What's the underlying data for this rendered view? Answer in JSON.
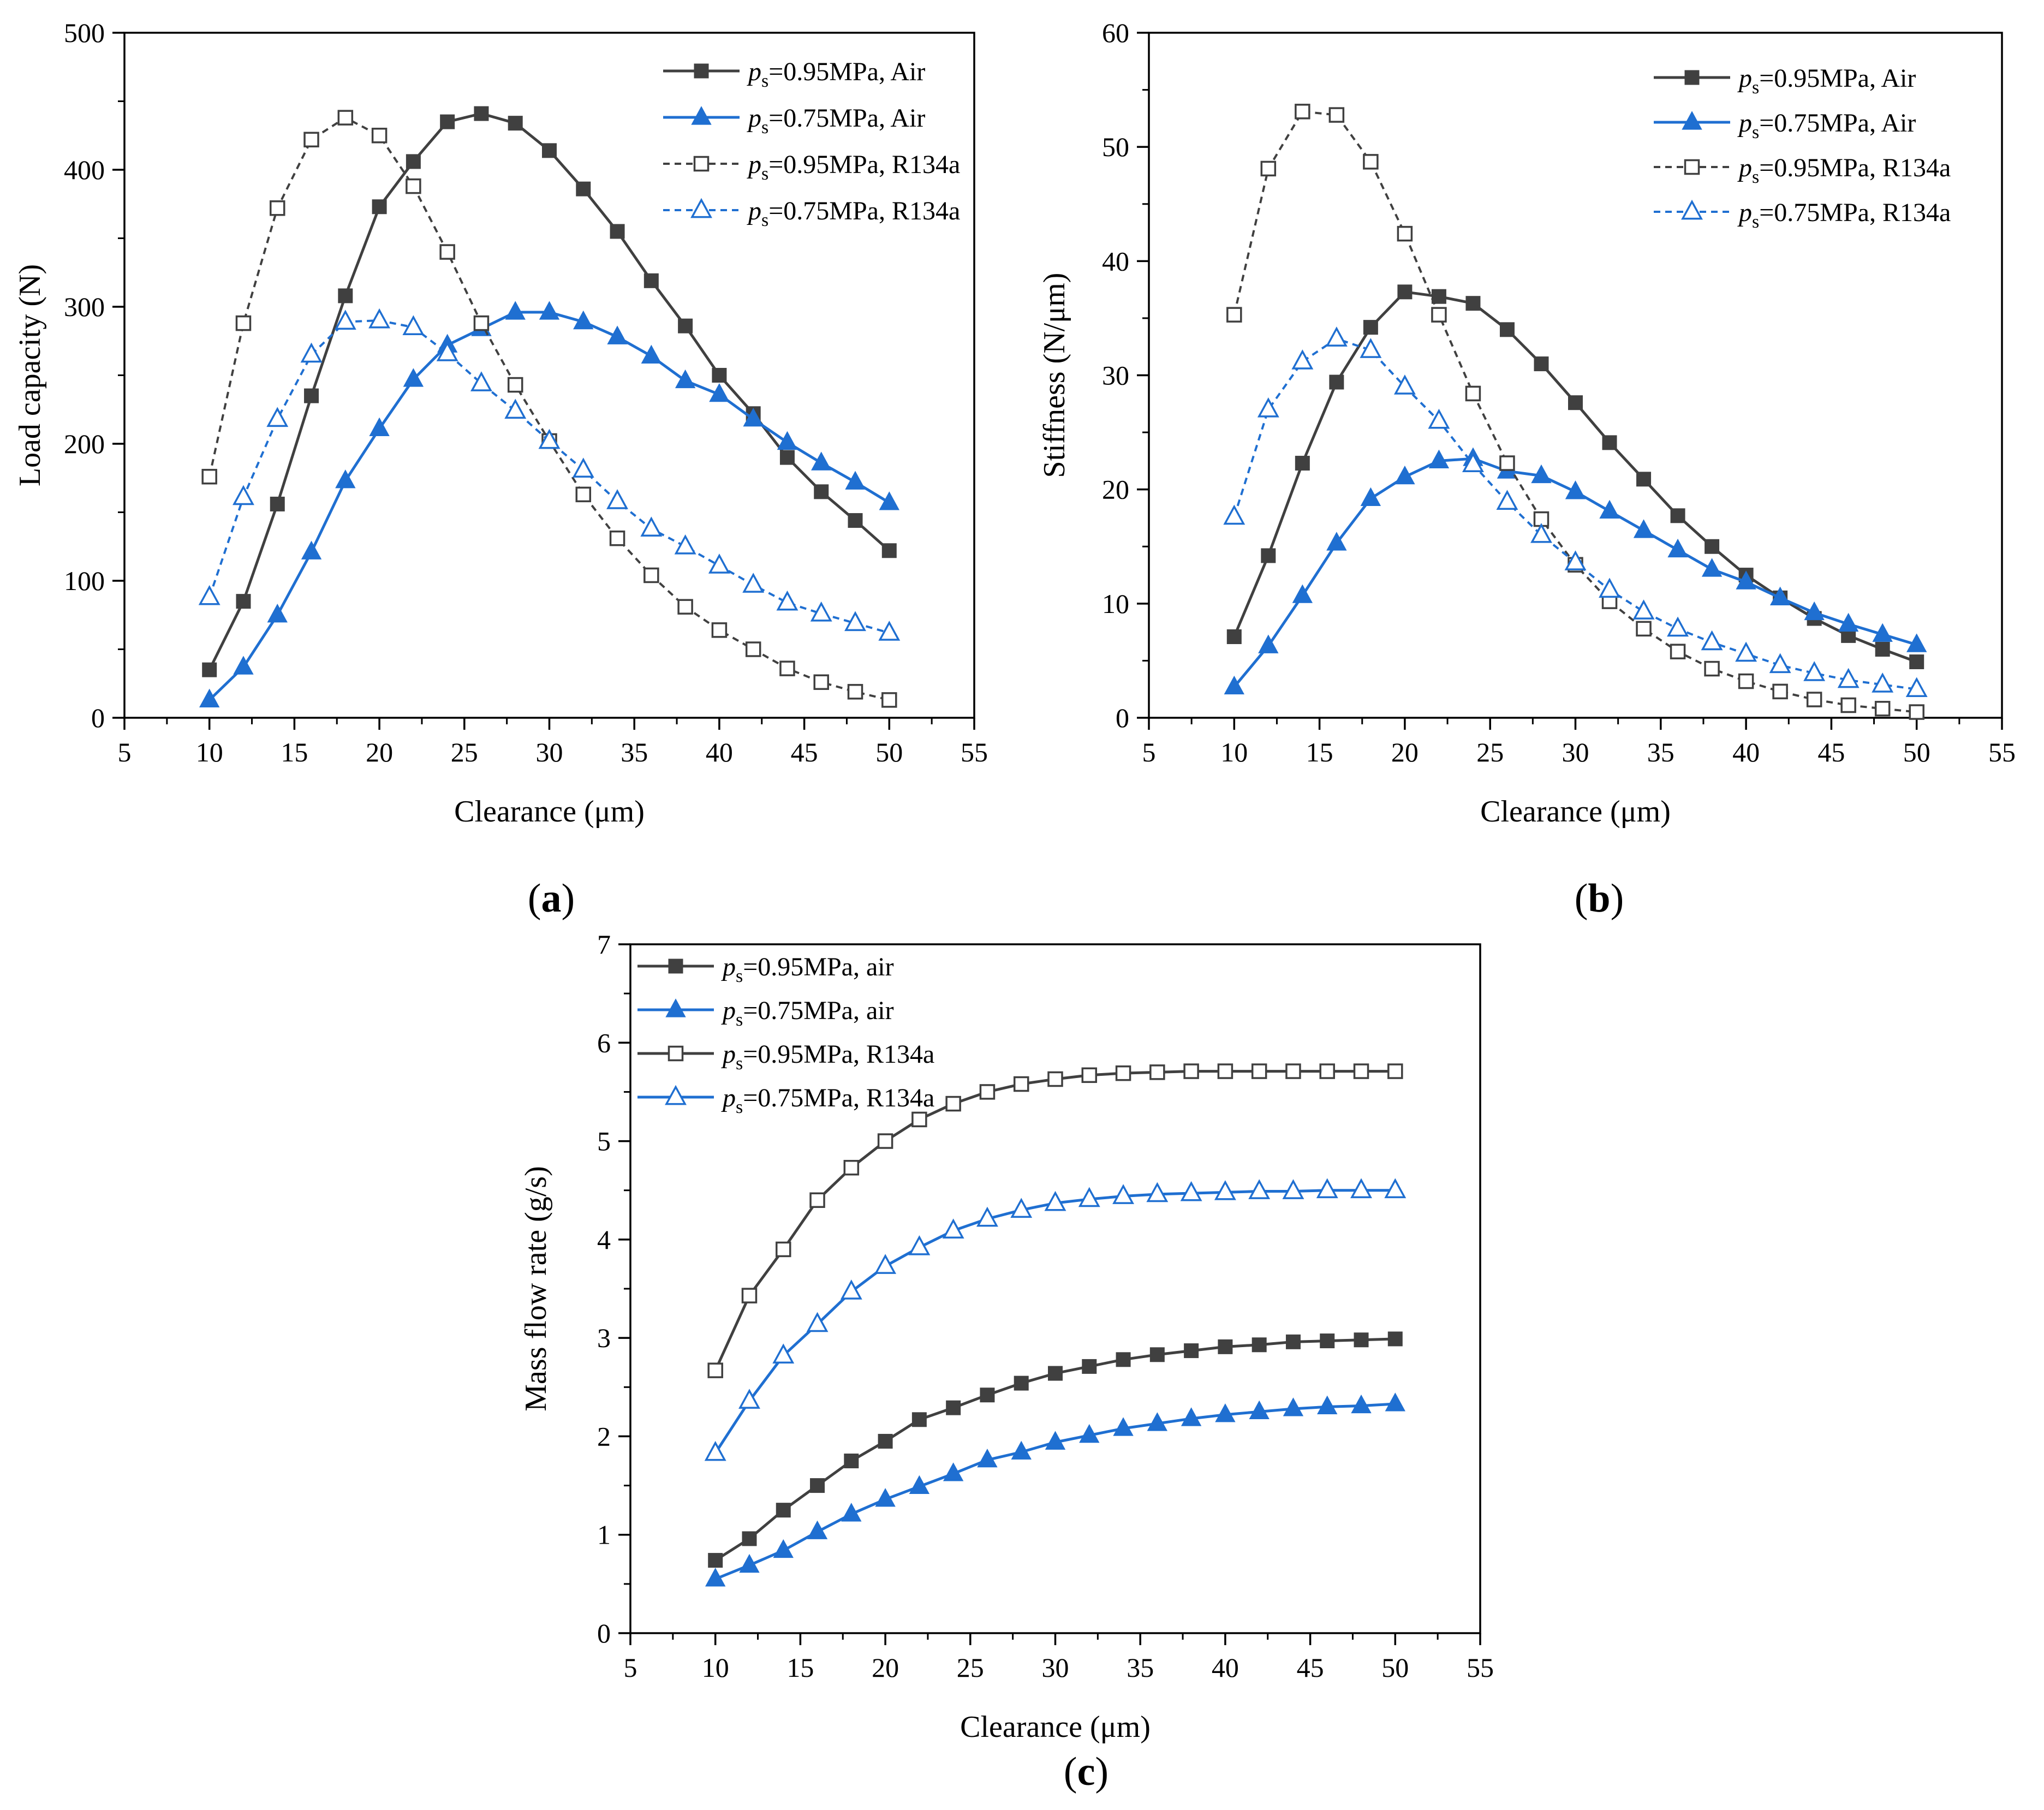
{
  "figure": {
    "panel_labels": [
      "a",
      "b",
      "c"
    ]
  },
  "chart_data": [
    {
      "type": "line",
      "panel": "a",
      "xlabel": "Clearance (μm)",
      "ylabel": "Load capacity (N)",
      "xlim": [
        5,
        55
      ],
      "ylim": [
        0,
        500
      ],
      "xticks": [
        5,
        10,
        15,
        20,
        25,
        30,
        35,
        40,
        45,
        50,
        55
      ],
      "yticks": [
        0,
        100,
        200,
        300,
        400,
        500
      ],
      "legend_position": "top-right",
      "x": [
        10,
        12,
        14,
        16,
        18,
        20,
        22,
        24,
        26,
        28,
        30,
        32,
        34,
        36,
        38,
        40,
        42,
        44,
        46,
        48,
        50
      ],
      "series": [
        {
          "name": "ps=0.95MPa, Air",
          "legend_p": "p",
          "legend_sub": "s",
          "legend_rest": "=0.95MPa, Air",
          "color": "#404040",
          "marker": "square-filled",
          "dashed": false,
          "values": [
            35,
            85,
            156,
            235,
            308,
            373,
            406,
            435,
            441,
            434,
            414,
            386,
            355,
            319,
            286,
            250,
            222,
            190,
            165,
            144,
            122
          ]
        },
        {
          "name": "ps=0.75MPa, Air",
          "legend_p": "p",
          "legend_sub": "s",
          "legend_rest": "=0.75MPa, Air",
          "color": "#1f6fd1",
          "marker": "triangle-filled",
          "dashed": false,
          "values": [
            13,
            37,
            75,
            121,
            173,
            211,
            247,
            272,
            284,
            296,
            296,
            289,
            278,
            264,
            246,
            236,
            218,
            201,
            186,
            172,
            157
          ]
        },
        {
          "name": "ps=0.95MPa, R134a",
          "legend_p": "p",
          "legend_sub": "s",
          "legend_rest": "=0.95MPa, R134a",
          "color": "#404040",
          "marker": "square-open",
          "dashed": true,
          "values": [
            176,
            288,
            372,
            422,
            438,
            425,
            388,
            340,
            288,
            243,
            202,
            163,
            131,
            104,
            81,
            64,
            50,
            36,
            26,
            19,
            13
          ]
        },
        {
          "name": "ps=0.75MPa, R134a",
          "legend_p": "p",
          "legend_sub": "s",
          "legend_rest": "=0.75MPa, R134a",
          "color": "#1f6fd1",
          "marker": "triangle-open",
          "dashed": true,
          "values": [
            88,
            161,
            218,
            265,
            289,
            290,
            285,
            266,
            244,
            224,
            202,
            181,
            158,
            138,
            125,
            111,
            97,
            84,
            76,
            69,
            62
          ]
        }
      ]
    },
    {
      "type": "line",
      "panel": "b",
      "xlabel": "Clearance (μm)",
      "ylabel": "Stiffness (N/μm)",
      "xlim": [
        5,
        55
      ],
      "ylim": [
        0,
        60
      ],
      "xticks": [
        5,
        10,
        15,
        20,
        25,
        30,
        35,
        40,
        45,
        50,
        55
      ],
      "yticks": [
        0,
        10,
        20,
        30,
        40,
        50,
        60
      ],
      "legend_position": "top-right",
      "x": [
        10,
        12,
        14,
        16,
        18,
        20,
        22,
        24,
        26,
        28,
        30,
        32,
        34,
        36,
        38,
        40,
        42,
        44,
        46,
        48,
        50
      ],
      "series": [
        {
          "name": "ps=0.95MPa, Air",
          "legend_p": "p",
          "legend_sub": "s",
          "legend_rest": "=0.95MPa, Air",
          "color": "#404040",
          "marker": "square-filled",
          "dashed": false,
          "values": [
            7.1,
            14.2,
            22.3,
            29.4,
            34.2,
            37.3,
            36.9,
            36.3,
            34.0,
            31.0,
            27.6,
            24.1,
            20.9,
            17.7,
            15.0,
            12.5,
            10.5,
            8.7,
            7.2,
            6.0,
            4.9
          ]
        },
        {
          "name": "ps=0.75MPa, Air",
          "legend_p": "p",
          "legend_sub": "s",
          "legend_rest": "=0.75MPa, Air",
          "color": "#1f6fd1",
          "marker": "triangle-filled",
          "dashed": false,
          "values": [
            2.7,
            6.3,
            10.7,
            15.3,
            19.2,
            21.1,
            22.5,
            22.7,
            21.6,
            21.2,
            19.8,
            18.1,
            16.4,
            14.7,
            13.0,
            11.9,
            10.5,
            9.2,
            8.2,
            7.3,
            6.4
          ]
        },
        {
          "name": "ps=0.95MPa, R134a",
          "legend_p": "p",
          "legend_sub": "s",
          "legend_rest": "=0.95MPa, R134a",
          "color": "#404040",
          "marker": "square-open",
          "dashed": true,
          "values": [
            35.3,
            48.1,
            53.1,
            52.8,
            48.7,
            42.4,
            35.3,
            28.4,
            22.3,
            17.4,
            13.4,
            10.2,
            7.8,
            5.8,
            4.3,
            3.2,
            2.3,
            1.6,
            1.1,
            0.8,
            0.5
          ]
        },
        {
          "name": "ps=0.75MPa, R134a",
          "legend_p": "p",
          "legend_sub": "s",
          "legend_rest": "=0.75MPa, R134a",
          "color": "#1f6fd1",
          "marker": "triangle-open",
          "dashed": true,
          "values": [
            17.6,
            27.0,
            31.2,
            33.2,
            32.2,
            29.0,
            26.0,
            22.2,
            18.9,
            16.0,
            13.6,
            11.2,
            9.3,
            7.8,
            6.6,
            5.6,
            4.6,
            3.9,
            3.3,
            2.9,
            2.5
          ]
        }
      ]
    },
    {
      "type": "line",
      "panel": "c",
      "xlabel": "Clearance (μm)",
      "ylabel": "Mass flow rate (g/s)",
      "xlim": [
        5,
        55
      ],
      "ylim": [
        0,
        7
      ],
      "xticks": [
        5,
        10,
        15,
        20,
        25,
        30,
        35,
        40,
        45,
        50,
        55
      ],
      "yticks": [
        0,
        1,
        2,
        3,
        4,
        5,
        6,
        7
      ],
      "legend_position": "top-left",
      "x": [
        10,
        12,
        14,
        16,
        18,
        20,
        22,
        24,
        26,
        28,
        30,
        32,
        34,
        36,
        38,
        40,
        42,
        44,
        46,
        48,
        50
      ],
      "series": [
        {
          "name": "ps=0.95MPa, air",
          "legend_p": "p",
          "legend_sub": "s",
          "legend_rest": "=0.95MPa, air",
          "color": "#404040",
          "marker": "square-filled",
          "dashed": false,
          "values": [
            0.74,
            0.96,
            1.25,
            1.5,
            1.75,
            1.95,
            2.17,
            2.29,
            2.42,
            2.54,
            2.64,
            2.71,
            2.78,
            2.83,
            2.87,
            2.91,
            2.93,
            2.96,
            2.97,
            2.98,
            2.99
          ]
        },
        {
          "name": "ps=0.75MPa, air",
          "legend_p": "p",
          "legend_sub": "s",
          "legend_rest": "=0.75MPa, air",
          "color": "#1f6fd1",
          "marker": "triangle-filled",
          "dashed": false,
          "values": [
            0.55,
            0.69,
            0.84,
            1.03,
            1.21,
            1.36,
            1.49,
            1.62,
            1.76,
            1.84,
            1.94,
            2.01,
            2.08,
            2.13,
            2.18,
            2.22,
            2.25,
            2.28,
            2.3,
            2.31,
            2.33
          ]
        },
        {
          "name": "ps=0.95MPa, R134a",
          "legend_p": "p",
          "legend_sub": "s",
          "legend_rest": "=0.95MPa, R134a",
          "color": "#404040",
          "marker": "square-open",
          "dashed": false,
          "values": [
            2.67,
            3.43,
            3.9,
            4.4,
            4.73,
            5.0,
            5.22,
            5.38,
            5.5,
            5.58,
            5.63,
            5.67,
            5.69,
            5.7,
            5.71,
            5.71,
            5.71,
            5.71,
            5.71,
            5.71,
            5.71
          ]
        },
        {
          "name": "ps=0.75MPa, R134a",
          "legend_p": "p",
          "legend_sub": "s",
          "legend_rest": "=0.75MPa, R134a",
          "color": "#1f6fd1",
          "marker": "triangle-open",
          "dashed": false,
          "values": [
            1.83,
            2.36,
            2.82,
            3.14,
            3.47,
            3.73,
            3.92,
            4.09,
            4.21,
            4.3,
            4.37,
            4.41,
            4.44,
            4.46,
            4.47,
            4.48,
            4.49,
            4.49,
            4.5,
            4.5,
            4.5
          ]
        }
      ]
    }
  ]
}
